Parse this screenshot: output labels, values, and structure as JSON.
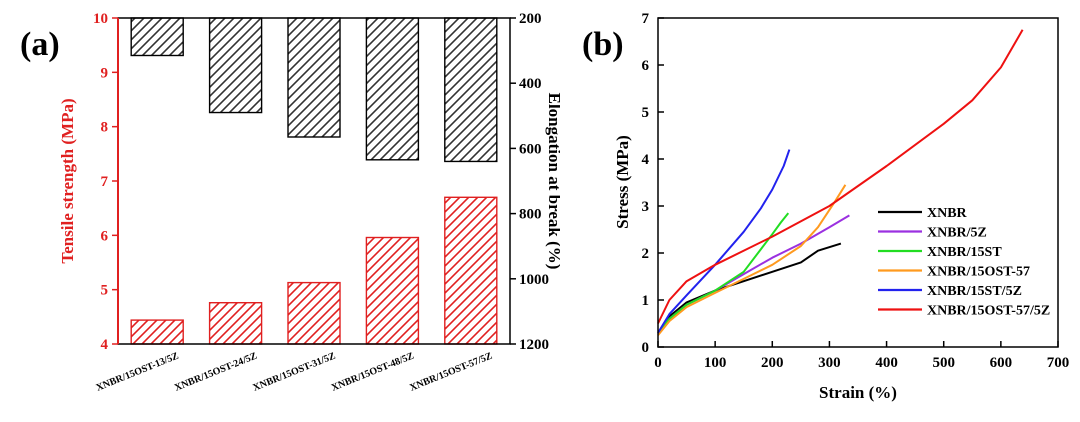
{
  "chart_data": [
    {
      "panel": "(a)",
      "type": "bar",
      "categories": [
        "XNBR/15OST-13/5Z",
        "XNBR/15OST-24/5Z",
        "XNBR/15OST-31/5Z",
        "XNBR/15OST-48/5Z",
        "XNBR/15OST-57/5Z"
      ],
      "series": [
        {
          "name": "Tensile strength (MPa)",
          "axis": "left",
          "color": "#e02020",
          "values": [
            4.44,
            4.76,
            5.13,
            5.96,
            6.7
          ]
        },
        {
          "name": "Elongation at break (%)",
          "axis": "right",
          "color": "#333333",
          "values": [
            315,
            490,
            565,
            635,
            640
          ]
        }
      ],
      "ylabel_left": "Tensile strength (MPa)",
      "ylabel_right": "Elongation at break (%)",
      "ylim_left": [
        4,
        10
      ],
      "ylim_right": [
        200,
        1200
      ],
      "right_axis_inverted": true,
      "yticks_left": [
        "4",
        "5",
        "6",
        "7",
        "8",
        "9",
        "10"
      ],
      "yticks_right": [
        "200",
        "400",
        "600",
        "800",
        "1000",
        "1200"
      ],
      "grid": false
    },
    {
      "panel": "(b)",
      "type": "line",
      "xlabel": "Strain (%)",
      "ylabel": "Stress (MPa)",
      "xlim": [
        0,
        700
      ],
      "ylim": [
        0,
        7
      ],
      "xticks": [
        "0",
        "100",
        "200",
        "300",
        "400",
        "500",
        "600",
        "700"
      ],
      "yticks": [
        "0",
        "1",
        "2",
        "3",
        "4",
        "5",
        "6",
        "7"
      ],
      "legend": "center-right",
      "grid": false,
      "series": [
        {
          "name": "XNBR",
          "color": "#000000",
          "x": [
            0,
            20,
            50,
            100,
            150,
            200,
            250,
            280,
            320
          ],
          "y": [
            0.3,
            0.65,
            0.95,
            1.2,
            1.4,
            1.6,
            1.8,
            2.05,
            2.2
          ]
        },
        {
          "name": "XNBR/5Z",
          "color": "#9b30e0",
          "x": [
            0,
            20,
            50,
            100,
            150,
            200,
            250,
            300,
            335
          ],
          "y": [
            0.3,
            0.6,
            0.9,
            1.2,
            1.55,
            1.9,
            2.2,
            2.55,
            2.8
          ]
        },
        {
          "name": "XNBR/15ST",
          "color": "#22dd22",
          "x": [
            0,
            20,
            50,
            100,
            150,
            200,
            215,
            228
          ],
          "y": [
            0.3,
            0.6,
            0.9,
            1.2,
            1.6,
            2.4,
            2.65,
            2.85
          ]
        },
        {
          "name": "XNBR/15OST-57",
          "color": "#ff9a1f",
          "x": [
            0,
            20,
            50,
            100,
            150,
            200,
            250,
            280,
            310,
            328
          ],
          "y": [
            0.25,
            0.55,
            0.85,
            1.15,
            1.45,
            1.75,
            2.15,
            2.55,
            3.1,
            3.45
          ]
        },
        {
          "name": "XNBR/15ST/5Z",
          "color": "#2222ee",
          "x": [
            0,
            20,
            50,
            100,
            150,
            180,
            200,
            220,
            230
          ],
          "y": [
            0.3,
            0.7,
            1.1,
            1.75,
            2.45,
            2.95,
            3.35,
            3.85,
            4.2
          ]
        },
        {
          "name": "XNBR/15OST-57/5Z",
          "color": "#ee1111",
          "x": [
            0,
            20,
            50,
            100,
            200,
            300,
            400,
            500,
            550,
            600,
            638
          ],
          "y": [
            0.5,
            1.0,
            1.4,
            1.75,
            2.35,
            3.0,
            3.85,
            4.75,
            5.25,
            5.95,
            6.75
          ]
        }
      ]
    }
  ]
}
